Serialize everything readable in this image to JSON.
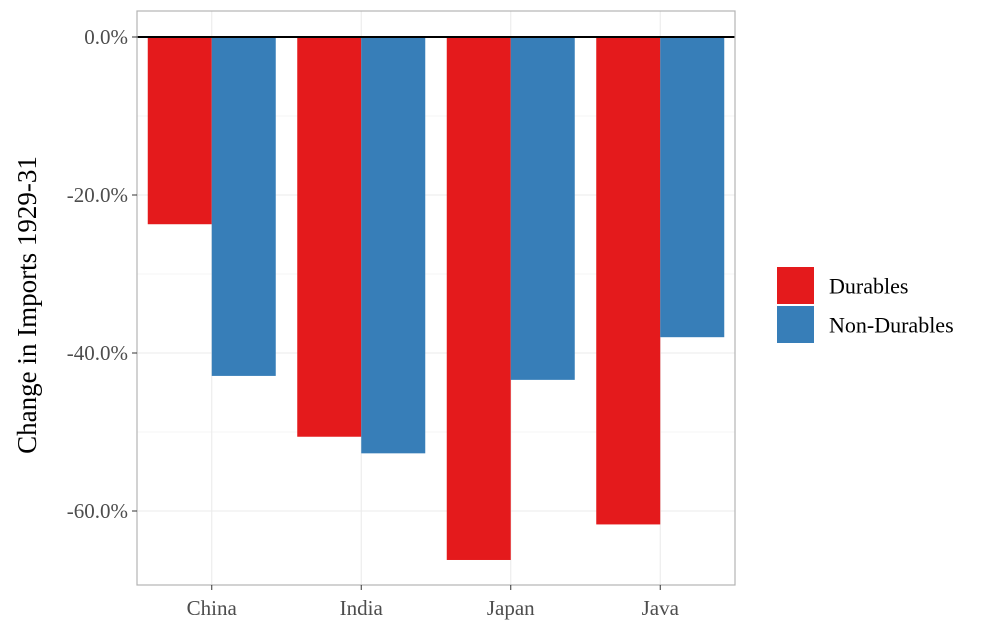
{
  "chart_data": {
    "type": "bar",
    "categories": [
      "China",
      "India",
      "Japan",
      "Java"
    ],
    "series": [
      {
        "name": "Durables",
        "color": "#e41a1c",
        "values": [
          -23.7,
          -50.6,
          -66.2,
          -61.7
        ]
      },
      {
        "name": "Non-Durables",
        "color": "#377eb8",
        "values": [
          -42.9,
          -52.7,
          -43.4,
          -38.0
        ]
      }
    ],
    "xlabel": "",
    "ylabel": "Change in Imports 1929-31",
    "ylim": [
      -69.3,
      0
    ],
    "yticks": [
      0,
      -20,
      -40,
      -60
    ],
    "ytick_labels": [
      "0.0%",
      "-20.0%",
      "-40.0%",
      "-60.0%"
    ],
    "reference_line": 0,
    "grid": true,
    "legend_position": "right"
  }
}
